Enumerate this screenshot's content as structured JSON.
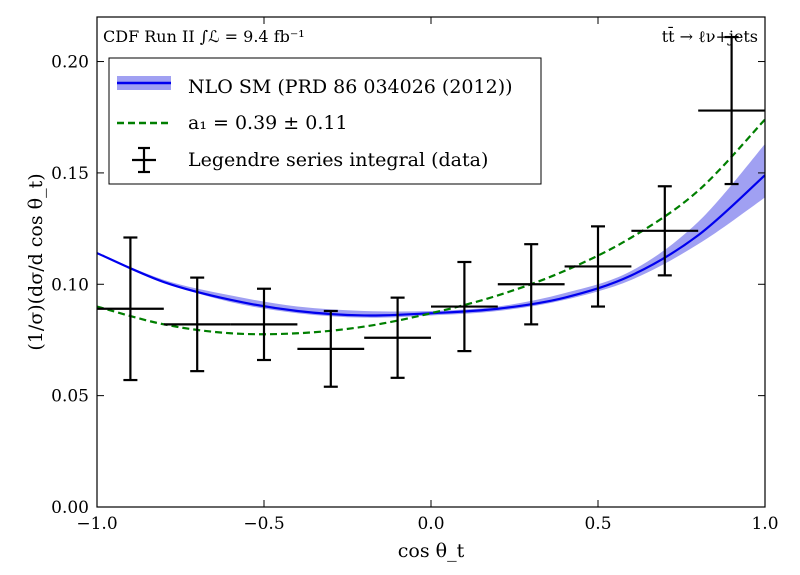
{
  "chart_data": {
    "type": "line",
    "title": "",
    "xlabel": "cos θ_t",
    "ylabel": "(1/σ)(dσ/d cos θ_t)",
    "xlim": [
      -1.0,
      1.0
    ],
    "ylim": [
      0.0,
      0.22
    ],
    "xticks": [
      -1.0,
      -0.5,
      0.0,
      0.5,
      1.0
    ],
    "xtick_labels": [
      "−1.0",
      "−0.5",
      "0.0",
      "0.5",
      "1.0"
    ],
    "yticks": [
      0.0,
      0.05,
      0.1,
      0.15,
      0.2
    ],
    "ytick_labels": [
      "0.00",
      "0.05",
      "0.10",
      "0.15",
      "0.20"
    ],
    "grid": false,
    "legend_position": "top-left",
    "annotations": {
      "top_left": "CDF Run II ∫ℒ = 9.4 fb⁻¹",
      "top_right": "tt̄ → ℓν+jets"
    },
    "series": [
      {
        "name": "NLO SM (PRD 86 034026 (2012))",
        "kind": "line_band",
        "color": "#0000ee",
        "band_color": "#8080ee",
        "x": [
          -1.0,
          -0.8,
          -0.6,
          -0.4,
          -0.2,
          0.0,
          0.2,
          0.4,
          0.6,
          0.8,
          1.0
        ],
        "y": [
          0.114,
          0.101,
          0.093,
          0.088,
          0.086,
          0.087,
          0.089,
          0.094,
          0.104,
          0.122,
          0.149
        ],
        "band_low": [
          0.114,
          0.101,
          0.092,
          0.087,
          0.085,
          0.086,
          0.088,
          0.093,
          0.102,
          0.118,
          0.139
        ],
        "band_high": [
          0.114,
          0.102,
          0.095,
          0.09,
          0.088,
          0.088,
          0.09,
          0.096,
          0.106,
          0.128,
          0.163
        ]
      },
      {
        "name": "a₁ = 0.39 ± 0.11",
        "kind": "dashed_line",
        "color": "#007f00",
        "x": [
          -1.0,
          -0.8,
          -0.6,
          -0.4,
          -0.2,
          0.0,
          0.2,
          0.4,
          0.6,
          0.8,
          1.0
        ],
        "y": [
          0.09,
          0.082,
          0.078,
          0.078,
          0.081,
          0.087,
          0.095,
          0.106,
          0.121,
          0.142,
          0.174
        ]
      },
      {
        "name": "Legendre series integral (data)",
        "kind": "errorbar",
        "color": "#000000",
        "x": [
          -0.9,
          -0.7,
          -0.5,
          -0.3,
          -0.1,
          0.1,
          0.3,
          0.5,
          0.7,
          0.9
        ],
        "x_halfwidth": [
          0.1,
          0.1,
          0.1,
          0.1,
          0.1,
          0.1,
          0.1,
          0.1,
          0.1,
          0.1
        ],
        "y": [
          0.089,
          0.082,
          0.082,
          0.071,
          0.076,
          0.09,
          0.1,
          0.108,
          0.124,
          0.178
        ],
        "y_err": [
          0.032,
          0.021,
          0.016,
          0.017,
          0.018,
          0.02,
          0.018,
          0.018,
          0.02,
          0.033
        ]
      }
    ]
  }
}
